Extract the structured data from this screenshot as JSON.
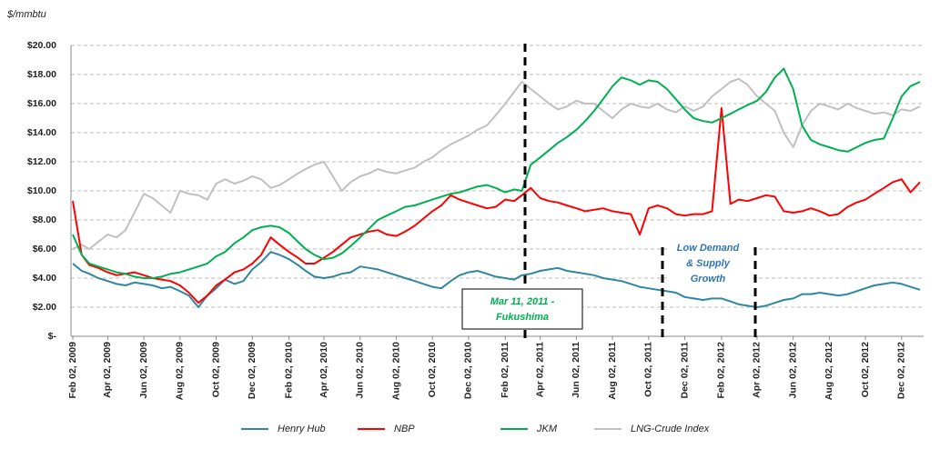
{
  "chart_data": {
    "type": "line",
    "y_axis_label": "$/mmbtu",
    "x": [
      "2009-02-02",
      "2009-02-17",
      "2009-03-02",
      "2009-03-17",
      "2009-04-02",
      "2009-04-17",
      "2009-05-02",
      "2009-05-17",
      "2009-06-02",
      "2009-06-17",
      "2009-07-02",
      "2009-07-17",
      "2009-08-02",
      "2009-08-17",
      "2009-09-02",
      "2009-09-17",
      "2009-10-02",
      "2009-10-17",
      "2009-11-02",
      "2009-11-17",
      "2009-12-02",
      "2009-12-17",
      "2010-01-02",
      "2010-01-17",
      "2010-02-02",
      "2010-02-17",
      "2010-03-02",
      "2010-03-17",
      "2010-04-02",
      "2010-04-17",
      "2010-05-02",
      "2010-05-17",
      "2010-06-02",
      "2010-06-17",
      "2010-07-02",
      "2010-07-17",
      "2010-08-02",
      "2010-08-17",
      "2010-09-02",
      "2010-09-17",
      "2010-10-02",
      "2010-10-17",
      "2010-11-02",
      "2010-11-17",
      "2010-12-02",
      "2010-12-17",
      "2011-01-02",
      "2011-01-17",
      "2011-02-02",
      "2011-02-17",
      "2011-03-02",
      "2011-03-17",
      "2011-04-02",
      "2011-04-17",
      "2011-05-02",
      "2011-05-17",
      "2011-06-02",
      "2011-06-17",
      "2011-07-02",
      "2011-07-17",
      "2011-08-02",
      "2011-08-17",
      "2011-09-02",
      "2011-09-17",
      "2011-10-02",
      "2011-10-17",
      "2011-11-02",
      "2011-11-17",
      "2011-12-02",
      "2011-12-17",
      "2012-01-02",
      "2012-01-17",
      "2012-02-02",
      "2012-02-17",
      "2012-03-02",
      "2012-03-17",
      "2012-04-02",
      "2012-04-17",
      "2012-05-02",
      "2012-05-17",
      "2012-06-02",
      "2012-06-17",
      "2012-07-02",
      "2012-07-17",
      "2012-08-02",
      "2012-08-17",
      "2012-09-02",
      "2012-09-17",
      "2012-10-02",
      "2012-10-17",
      "2012-11-02",
      "2012-11-17",
      "2012-12-02",
      "2012-12-17",
      "2013-01-02"
    ],
    "xlim": [
      "2009-02-02",
      "2013-01-02"
    ],
    "xticks": [
      {
        "value": "2009-02-02",
        "label": "Feb 02, 2009"
      },
      {
        "value": "2009-04-02",
        "label": "Apr 02, 2009"
      },
      {
        "value": "2009-06-02",
        "label": "Jun 02, 2009"
      },
      {
        "value": "2009-08-02",
        "label": "Aug 02, 2009"
      },
      {
        "value": "2009-10-02",
        "label": "Oct 02, 2009"
      },
      {
        "value": "2009-12-02",
        "label": "Dec 02, 2009"
      },
      {
        "value": "2010-02-02",
        "label": "Feb 02, 2010"
      },
      {
        "value": "2010-04-02",
        "label": "Apr 02, 2010"
      },
      {
        "value": "2010-06-02",
        "label": "Jun 02, 2010"
      },
      {
        "value": "2010-08-02",
        "label": "Aug 02, 2010"
      },
      {
        "value": "2010-10-02",
        "label": "Oct 02, 2010"
      },
      {
        "value": "2010-12-02",
        "label": "Dec 02, 2010"
      },
      {
        "value": "2011-02-02",
        "label": "Feb 02, 2011"
      },
      {
        "value": "2011-04-02",
        "label": "Apr 02, 2011"
      },
      {
        "value": "2011-06-02",
        "label": "Jun 02, 2011"
      },
      {
        "value": "2011-08-02",
        "label": "Aug 02, 2011"
      },
      {
        "value": "2011-10-02",
        "label": "Oct 02, 2011"
      },
      {
        "value": "2011-12-02",
        "label": "Dec 02, 2011"
      },
      {
        "value": "2012-02-02",
        "label": "Feb 02, 2012"
      },
      {
        "value": "2012-04-02",
        "label": "Apr 02, 2012"
      },
      {
        "value": "2012-06-02",
        "label": "Jun 02, 2012"
      },
      {
        "value": "2012-08-02",
        "label": "Aug 02, 2012"
      },
      {
        "value": "2012-10-02",
        "label": "Oct 02, 2012"
      },
      {
        "value": "2012-12-02",
        "label": "Dec 02, 2012"
      }
    ],
    "ylim": [
      0,
      20
    ],
    "yticks": [
      {
        "value": 0,
        "label": "$-"
      },
      {
        "value": 2,
        "label": "$2.00"
      },
      {
        "value": 4,
        "label": "$4.00"
      },
      {
        "value": 6,
        "label": "$6.00"
      },
      {
        "value": 8,
        "label": "$8.00"
      },
      {
        "value": 10,
        "label": "$10.00"
      },
      {
        "value": 12,
        "label": "$12.00"
      },
      {
        "value": 14,
        "label": "$14.00"
      },
      {
        "value": 16,
        "label": "$16.00"
      },
      {
        "value": 18,
        "label": "$18.00"
      },
      {
        "value": 20,
        "label": "$20.00"
      }
    ],
    "grid": true,
    "legend": "bottom",
    "series": [
      {
        "name": "Henry Hub",
        "color": "#2e86a0",
        "values": [
          5.0,
          4.5,
          4.3,
          4.0,
          3.8,
          3.6,
          3.5,
          3.7,
          3.6,
          3.5,
          3.3,
          3.4,
          3.1,
          2.8,
          2.0,
          2.8,
          3.3,
          3.9,
          3.6,
          3.8,
          4.6,
          5.1,
          5.8,
          5.6,
          5.3,
          4.9,
          4.5,
          4.1,
          4.0,
          4.1,
          4.3,
          4.4,
          4.8,
          4.7,
          4.6,
          4.4,
          4.2,
          4.0,
          3.8,
          3.6,
          3.4,
          3.3,
          3.8,
          4.2,
          4.4,
          4.5,
          4.3,
          4.1,
          4.0,
          3.9,
          4.2,
          4.3,
          4.5,
          4.6,
          4.7,
          4.5,
          4.4,
          4.3,
          4.2,
          4.0,
          3.9,
          3.8,
          3.6,
          3.4,
          3.3,
          3.2,
          3.1,
          3.0,
          2.7,
          2.6,
          2.5,
          2.6,
          2.6,
          2.4,
          2.2,
          2.1,
          2.0,
          2.1,
          2.3,
          2.5,
          2.6,
          2.9,
          2.9,
          3.0,
          2.9,
          2.8,
          2.9,
          3.1,
          3.3,
          3.5,
          3.6,
          3.7,
          3.6,
          3.4,
          3.2
        ]
      },
      {
        "name": "NBP",
        "color": "#ff0000",
        "values": [
          9.3,
          5.6,
          4.9,
          4.7,
          4.4,
          4.2,
          4.3,
          4.4,
          4.2,
          4.0,
          3.9,
          3.8,
          3.5,
          3.0,
          2.3,
          2.8,
          3.5,
          3.9,
          4.4,
          4.6,
          5.0,
          5.6,
          6.8,
          6.3,
          5.8,
          5.4,
          5.0,
          5.0,
          5.4,
          5.8,
          6.3,
          6.8,
          7.0,
          7.2,
          7.3,
          7.0,
          6.9,
          7.2,
          7.6,
          8.1,
          8.6,
          9.0,
          9.7,
          9.4,
          9.2,
          9.0,
          8.8,
          8.9,
          9.4,
          9.3,
          9.7,
          10.2,
          9.5,
          9.3,
          9.2,
          9.0,
          8.8,
          8.6,
          8.7,
          8.8,
          8.6,
          8.5,
          8.4,
          7.0,
          8.8,
          9.0,
          8.8,
          8.4,
          8.3,
          8.4,
          8.4,
          8.6,
          15.7,
          9.1,
          9.4,
          9.3,
          9.5,
          9.7,
          9.6,
          8.6,
          8.5,
          8.6,
          8.8,
          8.6,
          8.3,
          8.4,
          8.9,
          9.2,
          9.4,
          9.8,
          10.2,
          10.6,
          10.8,
          9.9,
          10.6
        ]
      },
      {
        "name": "JKM",
        "color": "#00b050",
        "values": [
          7.0,
          5.6,
          5.0,
          4.8,
          4.6,
          4.4,
          4.3,
          4.1,
          4.0,
          4.0,
          4.1,
          4.3,
          4.4,
          4.6,
          4.8,
          5.0,
          5.5,
          5.8,
          6.4,
          6.8,
          7.3,
          7.5,
          7.6,
          7.5,
          7.1,
          6.5,
          6.0,
          5.6,
          5.3,
          5.4,
          5.7,
          6.2,
          6.8,
          7.4,
          8.0,
          8.3,
          8.6,
          8.9,
          9.0,
          9.2,
          9.4,
          9.6,
          9.8,
          9.9,
          10.1,
          10.3,
          10.4,
          10.2,
          9.9,
          10.1,
          10.0,
          11.8,
          12.3,
          12.8,
          13.3,
          13.7,
          14.2,
          14.8,
          15.5,
          16.3,
          17.2,
          17.8,
          17.6,
          17.3,
          17.6,
          17.5,
          17.0,
          16.3,
          15.6,
          15.0,
          14.8,
          14.7,
          15.0,
          15.3,
          15.6,
          15.9,
          16.2,
          16.8,
          17.8,
          18.4,
          17.0,
          14.5,
          13.5,
          13.2,
          13.0,
          12.8,
          12.7,
          13.0,
          13.3,
          13.5,
          13.6,
          15.0,
          16.5,
          17.2,
          17.5
        ]
      },
      {
        "name": "LNG-Crude Index",
        "color": "#c0c0c0",
        "values": [
          6.0,
          6.3,
          6.0,
          6.5,
          7.0,
          6.8,
          7.3,
          8.5,
          9.8,
          9.5,
          9.0,
          8.5,
          10.0,
          9.8,
          9.7,
          9.4,
          10.5,
          10.8,
          10.5,
          10.7,
          11.0,
          10.8,
          10.2,
          10.4,
          10.8,
          11.2,
          11.5,
          11.8,
          12.0,
          11.0,
          10.0,
          10.6,
          11.0,
          11.2,
          11.5,
          11.3,
          11.2,
          11.4,
          11.6,
          12.0,
          12.3,
          12.8,
          13.2,
          13.5,
          13.8,
          14.2,
          14.5,
          15.2,
          16.0,
          16.8,
          17.5,
          17.0,
          16.5,
          16.0,
          15.6,
          15.8,
          16.2,
          16.0,
          16.0,
          15.5,
          15.0,
          15.6,
          16.0,
          15.8,
          15.7,
          16.0,
          15.6,
          15.4,
          15.8,
          15.5,
          15.8,
          16.5,
          17.0,
          17.5,
          17.7,
          17.3,
          16.5,
          16.0,
          15.5,
          14.0,
          13.0,
          14.5,
          15.5,
          16.0,
          15.8,
          15.6,
          16.0,
          15.7,
          15.5,
          15.3,
          15.4,
          15.2,
          15.6,
          15.5,
          15.8
        ]
      }
    ],
    "annotations": [
      {
        "text": [
          "Mar 11, 2011 -",
          "Fukushima"
        ],
        "color": "#00b050"
      },
      {
        "text": [
          "Low Demand",
          "& Supply",
          "Growth"
        ],
        "color": "#2e75b6"
      }
    ]
  }
}
